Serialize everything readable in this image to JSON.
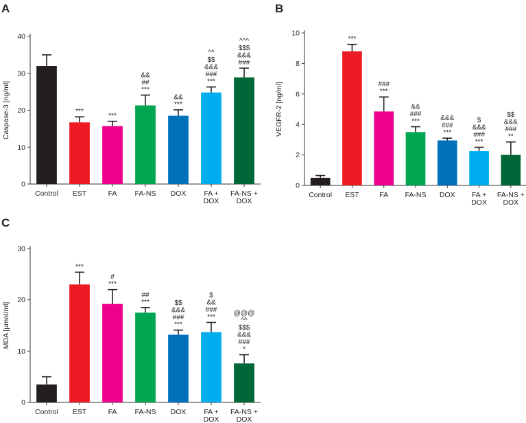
{
  "chart_data": [
    {
      "panel": "A",
      "type": "bar",
      "ylabel": "Caspase-3 [ng/ml]",
      "ylim": [
        0,
        40
      ],
      "yticks": [
        0,
        10,
        20,
        30,
        40
      ],
      "categories": [
        [
          "Control"
        ],
        [
          "EST"
        ],
        [
          "FA"
        ],
        [
          "FA-NS"
        ],
        [
          "DOX"
        ],
        [
          "FA +",
          "DOX"
        ],
        [
          "FA-NS +",
          "DOX"
        ]
      ],
      "values": [
        32,
        16.7,
        15.7,
        21.3,
        18.5,
        24.8,
        28.9
      ],
      "errors": [
        3.0,
        1.5,
        1.3,
        2.8,
        1.6,
        1.5,
        2.5
      ],
      "colors": [
        "#231f20",
        "#ed1c24",
        "#ec008c",
        "#00a651",
        "#0072bc",
        "#00aeef",
        "#006838"
      ],
      "significance": [
        [],
        [
          "***"
        ],
        [
          "***"
        ],
        [
          "&&",
          "##",
          "***"
        ],
        [
          "&&",
          "***"
        ],
        [
          "^^",
          "$$",
          "&&&",
          "###",
          "***"
        ],
        [
          "^^^",
          "$$$",
          "&&&",
          "###"
        ]
      ]
    },
    {
      "panel": "B",
      "type": "bar",
      "ylabel": "VEGFR-2 [ng/ml]",
      "ylim": [
        0,
        10
      ],
      "yticks": [
        0,
        2,
        4,
        6,
        8,
        10
      ],
      "categories": [
        [
          "Control"
        ],
        [
          "EST"
        ],
        [
          "FA"
        ],
        [
          "FA-NS"
        ],
        [
          "DOX"
        ],
        [
          "FA +",
          "DOX"
        ],
        [
          "FA-NS +",
          "DOX"
        ]
      ],
      "values": [
        0.5,
        8.8,
        4.85,
        3.5,
        2.95,
        2.25,
        2.0
      ],
      "errors": [
        0.15,
        0.45,
        0.95,
        0.35,
        0.15,
        0.25,
        0.85
      ],
      "colors": [
        "#231f20",
        "#ed1c24",
        "#ec008c",
        "#00a651",
        "#0072bc",
        "#00aeef",
        "#006838"
      ],
      "significance": [
        [],
        [
          "***"
        ],
        [
          "###",
          "***"
        ],
        [
          "&&",
          "###",
          "***"
        ],
        [
          "&&&",
          "###",
          "***"
        ],
        [
          "$",
          "&&&",
          "###",
          "***"
        ],
        [
          "$$",
          "&&&",
          "###",
          "**"
        ]
      ]
    },
    {
      "panel": "C",
      "type": "bar",
      "ylabel": "MDA [µmol/ml]",
      "ylim": [
        0,
        30
      ],
      "yticks": [
        0,
        10,
        20,
        30
      ],
      "categories": [
        [
          "Control"
        ],
        [
          "EST"
        ],
        [
          "FA"
        ],
        [
          "FA-NS"
        ],
        [
          "DOX"
        ],
        [
          "FA +",
          "DOX"
        ],
        [
          "FA-NS +",
          "DOX"
        ]
      ],
      "values": [
        3.5,
        23.0,
        19.2,
        17.5,
        13.2,
        13.7,
        7.6
      ],
      "errors": [
        1.5,
        2.4,
        2.8,
        1.0,
        0.9,
        1.9,
        1.7
      ],
      "colors": [
        "#231f20",
        "#ed1c24",
        "#ec008c",
        "#00a651",
        "#0072bc",
        "#00aeef",
        "#006838"
      ],
      "significance": [
        [],
        [
          "***"
        ],
        [
          "#",
          "***"
        ],
        [
          "##",
          "***"
        ],
        [
          "$$",
          "&&&",
          "###",
          "***"
        ],
        [
          "$",
          "&&",
          "###",
          "***"
        ],
        [
          "@@@",
          "^^",
          "$$$",
          "&&&",
          "###",
          "*"
        ]
      ]
    }
  ]
}
